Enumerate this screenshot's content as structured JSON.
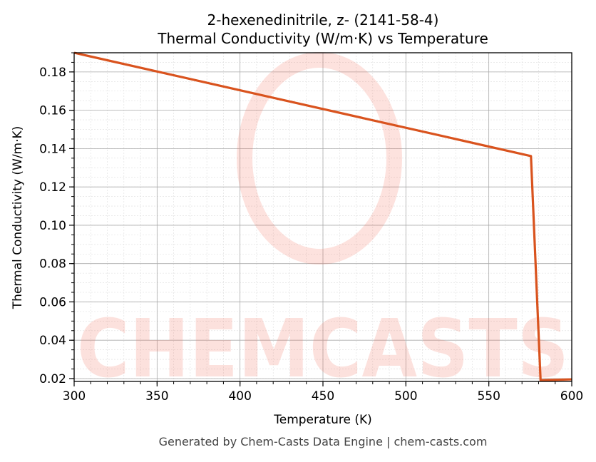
{
  "chart_data": {
    "type": "line",
    "title": "2-hexenedinitrile, z- (2141-58-4)",
    "subtitle": "Thermal Conductivity (W/m·K) vs Temperature",
    "xlabel": "Temperature (K)",
    "ylabel": "Thermal Conductivity (W/m·K)",
    "xlim": [
      300,
      600
    ],
    "ylim": [
      0.0185,
      0.19
    ],
    "xticks": [
      300,
      350,
      400,
      450,
      500,
      550,
      600
    ],
    "xtick_labels": [
      "300",
      "350",
      "400",
      "450",
      "500",
      "550",
      "600"
    ],
    "yticks": [
      0.02,
      0.04,
      0.06,
      0.08,
      0.1,
      0.12,
      0.14,
      0.16,
      0.18
    ],
    "ytick_labels": [
      "0.02",
      "0.04",
      "0.06",
      "0.08",
      "0.10",
      "0.12",
      "0.14",
      "0.16",
      "0.18"
    ],
    "grid": true,
    "series": [
      {
        "name": "Thermal Conductivity",
        "color": "#d9531e",
        "x": [
          300,
          575.4,
          581.2,
          600
        ],
        "y": [
          0.19,
          0.1361,
          0.0191,
          0.0196
        ]
      }
    ]
  },
  "watermark": "CHEMCASTS",
  "footer": "Generated by Chem-Casts Data Engine | chem-casts.com"
}
